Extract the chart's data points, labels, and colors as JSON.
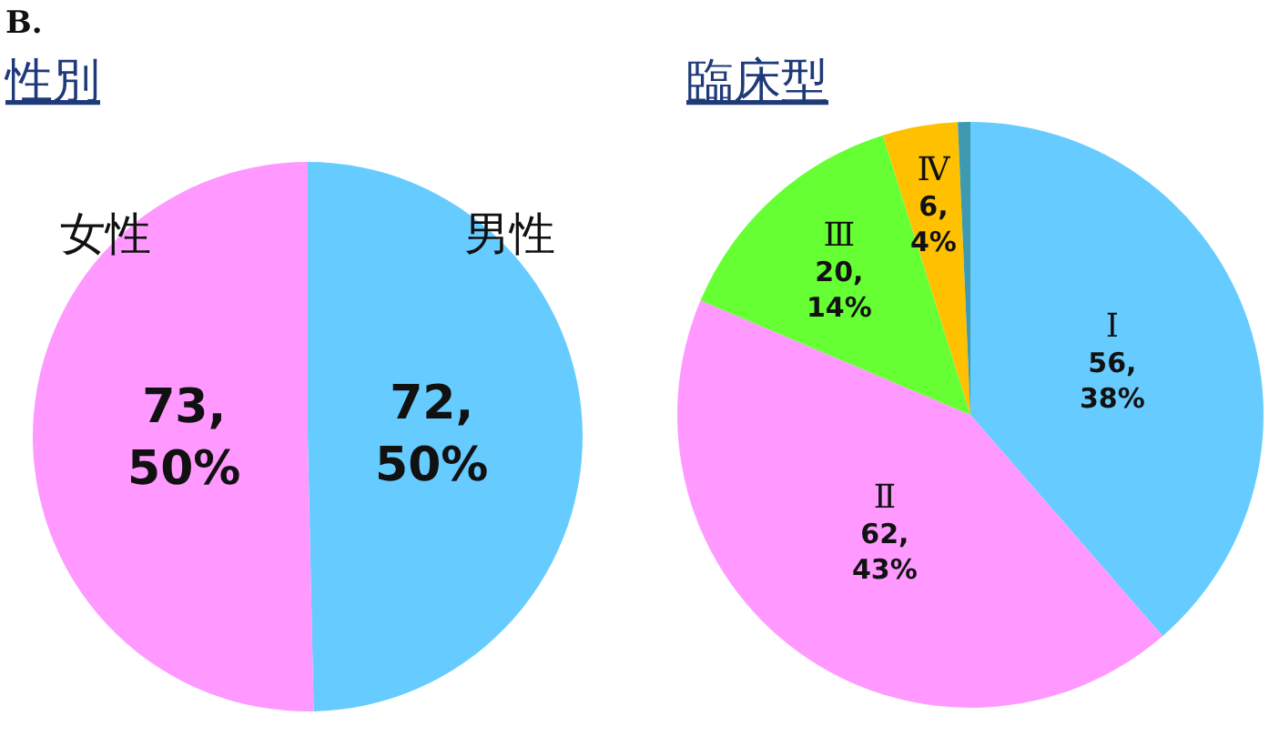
{
  "chart_data": [
    {
      "type": "pie",
      "title": "性別",
      "annotations": [
        "B."
      ],
      "categories": [
        "男性",
        "女性"
      ],
      "values": [
        72,
        73
      ],
      "colors": [
        "#66ccff",
        "#ff99ff"
      ],
      "value_labels": [
        "72, 50%",
        "73, 50%"
      ]
    },
    {
      "type": "pie",
      "title": "臨床型",
      "categories": [
        "Ⅰ",
        "Ⅱ",
        "Ⅲ",
        "Ⅳ",
        null
      ],
      "values": [
        56,
        62,
        20,
        6,
        1
      ],
      "colors": [
        "#66ccff",
        "#ff99ff",
        "#66ff33",
        "#ffc000",
        "#3d9ab0"
      ],
      "value_labels": [
        "56, 38%",
        "62, 43%",
        "20, 14%",
        "6, 4%",
        null
      ]
    }
  ]
}
